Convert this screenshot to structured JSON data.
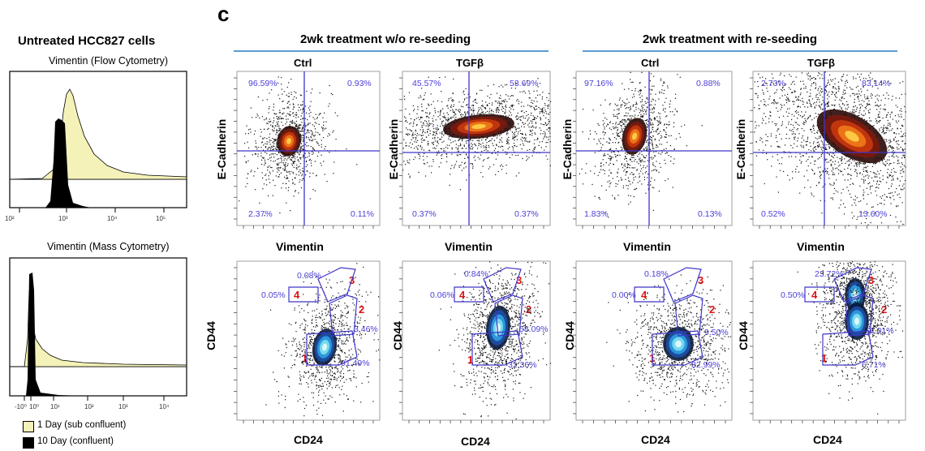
{
  "panel_letter": "c",
  "left": {
    "title": "Untreated HCC827 cells",
    "flow_title": "Vimentin  (Flow Cytometry)",
    "flow_ticks": [
      "10²",
      "10³",
      "10⁴",
      "10⁵"
    ],
    "mass_title": "Vimentin  (Mass Cytometry)",
    "mass_ticks": [
      "-10⁰",
      "10⁰",
      "10¹",
      "10²",
      "10³",
      "10⁴"
    ],
    "legend": [
      {
        "label": "1 Day (sub confluent)",
        "color": "#f4f2b8"
      },
      {
        "label": "10 Day (confluent)",
        "color": "#000000"
      }
    ]
  },
  "groups": [
    {
      "title": "2wk treatment  w/o re-seeding"
    },
    {
      "title": "2wk treatment  with re-seeding"
    }
  ],
  "axis_labels": {
    "ecad": "E-Cadherin",
    "vim": "Vimentin",
    "cd44": "CD44",
    "cd24": "CD24"
  },
  "scatter_panels": [
    {
      "col": "Ctrl",
      "q": [
        "96.59%",
        "0.93%",
        "2.37%",
        "0.11%"
      ]
    },
    {
      "col": "TGFβ",
      "q": [
        "45.57%",
        "53.69%",
        "0.37%",
        "0.37%"
      ]
    },
    {
      "col": "Ctrl",
      "q": [
        "97.16%",
        "0.88%",
        "1.83%",
        "0.13%"
      ]
    },
    {
      "col": "TGFβ",
      "q": [
        "2.73%",
        "83.14%",
        "0.52%",
        "13.60%"
      ]
    }
  ],
  "gate_panels": [
    {
      "g3": "0.08%",
      "g4": "0.05%",
      "g2": "3.46%",
      "g1": "91.49%"
    },
    {
      "g3": "0.84%",
      "g4": "0.06%",
      "g2": "58.09%",
      "g1": "31.36%"
    },
    {
      "g3": "0.18%",
      "g4": "0.00%",
      "g2": "9.50%",
      "g1": "82.99%"
    },
    {
      "g3": "23.72%",
      "g4": "0.50%",
      "g2": "64.01%",
      "g1": "6.71%"
    }
  ],
  "gate_numbers": [
    "1",
    "2",
    "3",
    "4"
  ],
  "colors": {
    "accent_line": "#5b9bd5",
    "gate": "#3f36c8",
    "pct": "#4b3fd6",
    "gate_num": "#dd1111"
  }
}
